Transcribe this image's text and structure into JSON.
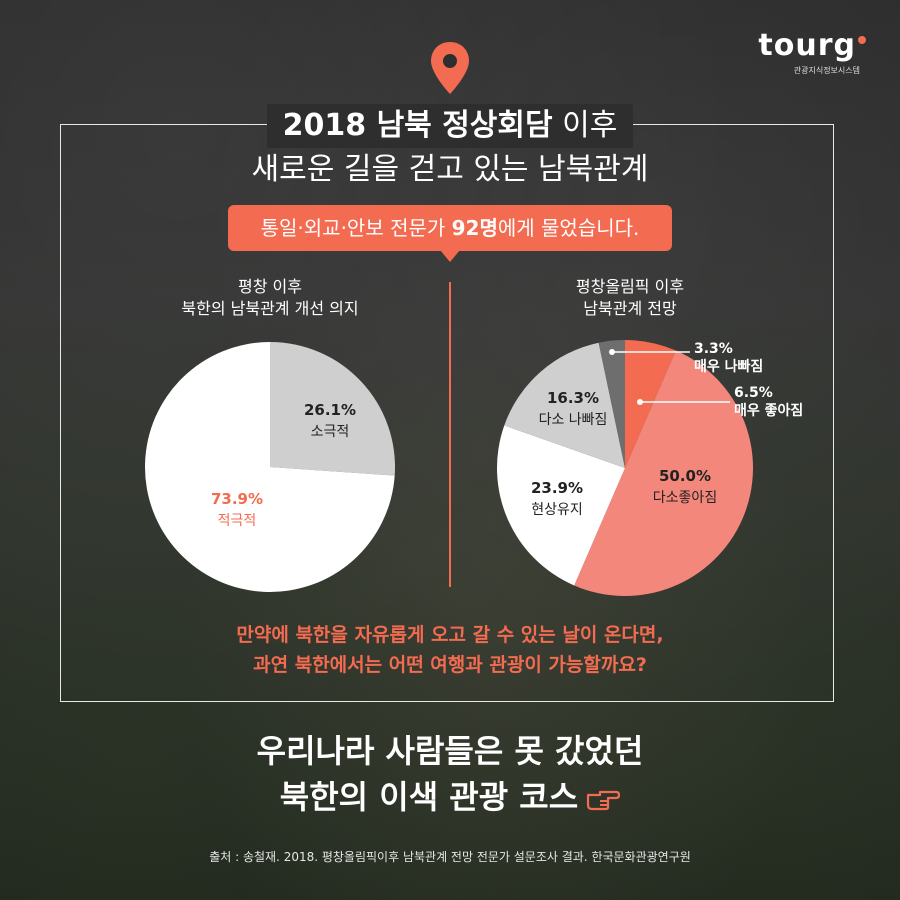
{
  "logo": {
    "text": "tour",
    "sub": "관광지식정보시스템"
  },
  "title": {
    "line1_bold": "2018 남북 정상회담",
    "line1_light": " 이후",
    "line2": "새로운 길을 걷고 있는 남북관계"
  },
  "banner": {
    "pre": "통일·외교·안보 전문가 ",
    "bold": "92명",
    "post": "에게 물었습니다."
  },
  "colors": {
    "accent": "#f36b50",
    "salmon": "#f4877b",
    "white": "#ffffff",
    "light_gray": "#cfcfcf",
    "dark_gray": "#6e6e6e"
  },
  "chart_data": [
    {
      "type": "pie",
      "title": "평창 이후\n북한의 남북관계 개선 의지",
      "title_lines": [
        "평창 이후",
        "북한의 남북관계 개선 의지"
      ],
      "slices": [
        {
          "label": "소극적",
          "value": 26.1,
          "value_text": "26.1%",
          "color": "#cfcfcf",
          "text_color": "#222222"
        },
        {
          "label": "적극적",
          "value": 73.9,
          "value_text": "73.9%",
          "color": "#ffffff",
          "text_color": "#f36b50"
        }
      ]
    },
    {
      "type": "pie",
      "title": "평창올림픽 이후\n남북관계 전망",
      "title_lines": [
        "평창올림픽 이후",
        "남북관계 전망"
      ],
      "slices": [
        {
          "label": "매우 좋아짐",
          "value": 6.5,
          "value_text": "6.5%",
          "color": "#f36b50",
          "text_color": "#ffffff"
        },
        {
          "label": "다소좋아짐",
          "value": 50.0,
          "value_text": "50.0%",
          "color": "#f4877b",
          "text_color": "#222222"
        },
        {
          "label": "현상유지",
          "value": 23.9,
          "value_text": "23.9%",
          "color": "#ffffff",
          "text_color": "#222222"
        },
        {
          "label": "다소 나빠짐",
          "value": 16.3,
          "value_text": "16.3%",
          "color": "#cfcfcf",
          "text_color": "#222222"
        },
        {
          "label": "매우 나빠짐",
          "value": 3.3,
          "value_text": "3.3%",
          "color": "#6e6e6e",
          "text_color": "#ffffff"
        }
      ]
    }
  ],
  "question": {
    "line1": "만약에 북한을 자유롭게 오고 갈 수 있는 날이 온다면,",
    "line2": "과연 북한에서는 어떤 여행과 관광이 가능할까요?"
  },
  "headline": {
    "line1": "우리나라 사람들은 못 갔었던",
    "line2": "북한의 이색 관광 코스"
  },
  "source": "출처 : 송철재. 2018. 평창올림픽이후 남북관계 전망 전문가 설문조사 결과. 한국문화관광연구원"
}
